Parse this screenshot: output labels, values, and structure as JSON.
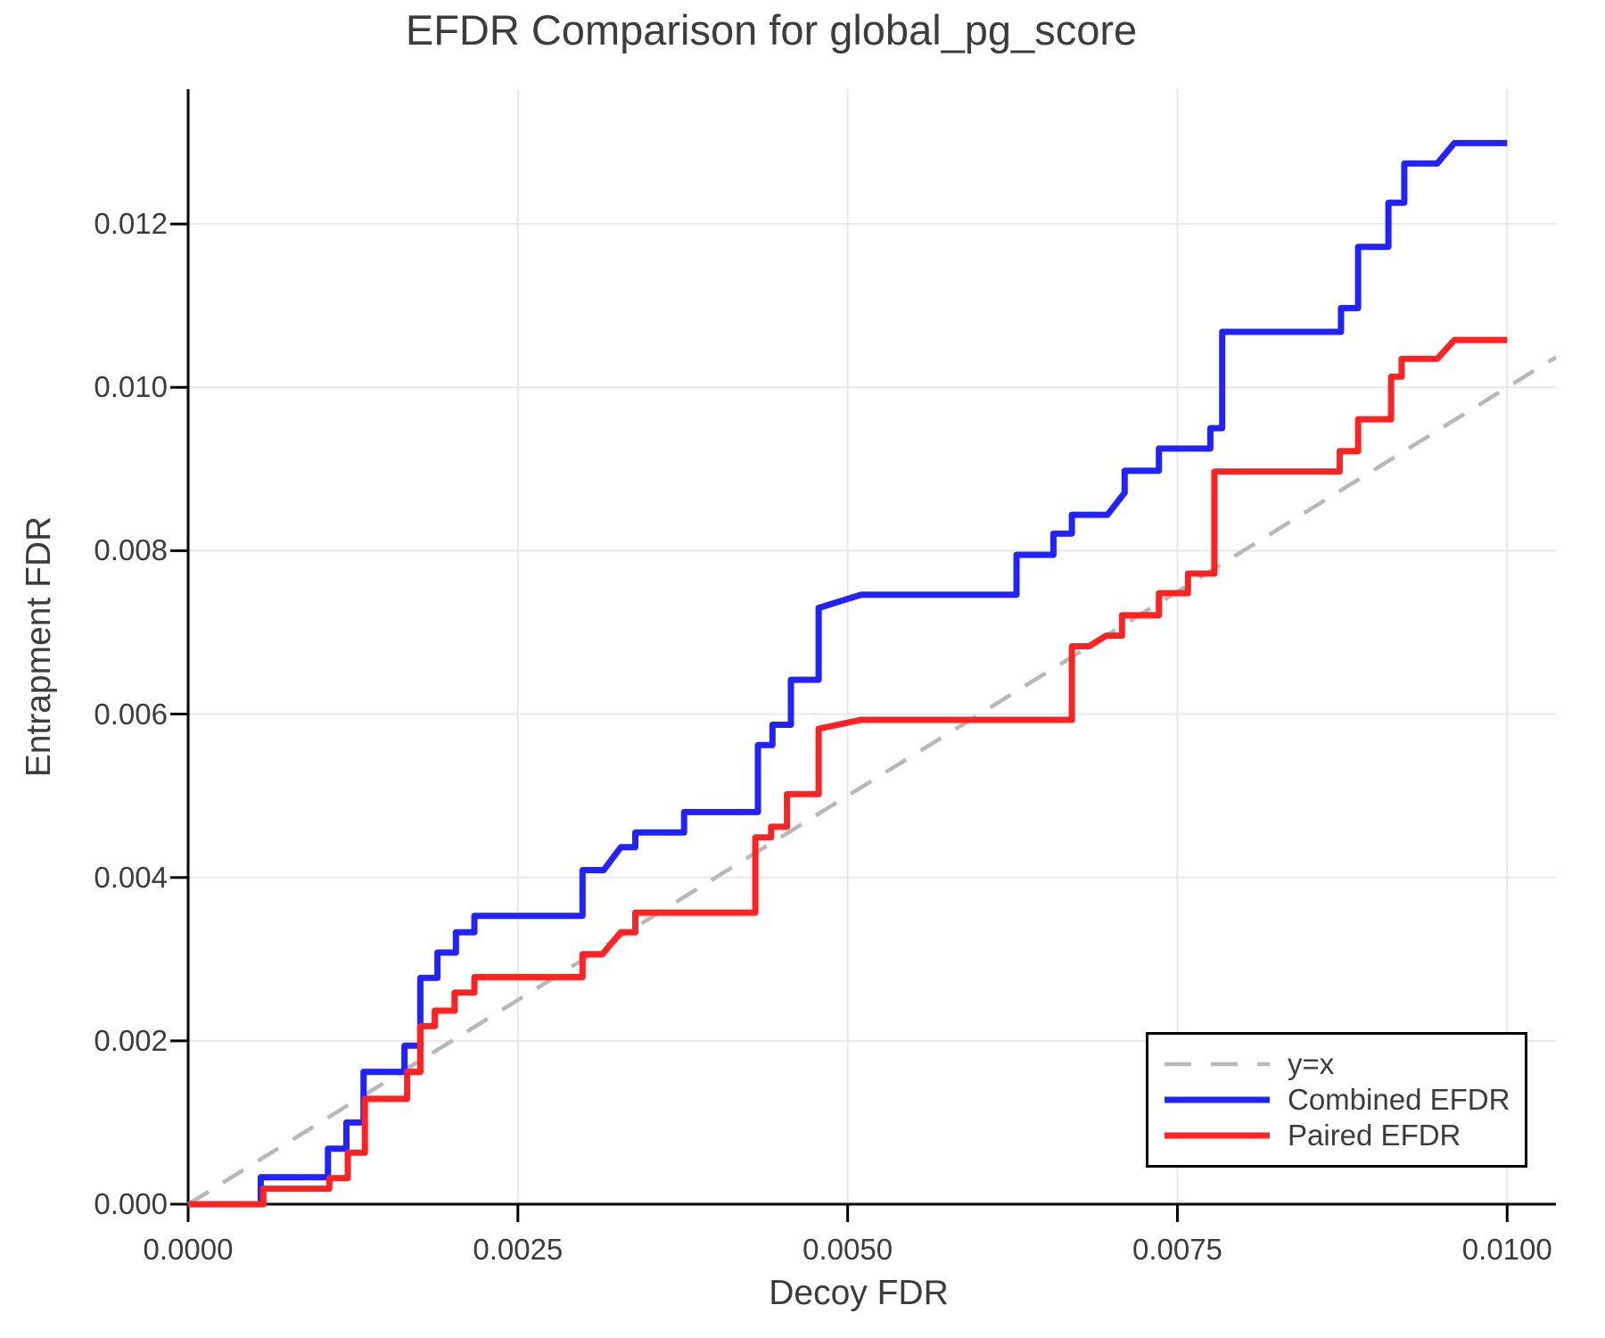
{
  "title": "EFDR Comparison for global_pg_score",
  "axes": {
    "xlabel": "Decoy FDR",
    "ylabel": "Entrapment FDR"
  },
  "legend": {
    "position": "bottom-right",
    "entries": [
      {
        "label": "y=x"
      },
      {
        "label": "Combined EFDR"
      },
      {
        "label": "Paired EFDR"
      }
    ]
  },
  "colors": {
    "combined": "#2222ff",
    "paired": "#ff2222",
    "identity": "#b8b8b8",
    "gridline": "#e8e8e8",
    "spine": "#000000",
    "text": "#3c3c3c",
    "background": "#ffffff"
  },
  "chart_data": {
    "type": "line",
    "title": "EFDR Comparison for global_pg_score",
    "xlabel": "Decoy FDR",
    "ylabel": "Entrapment FDR",
    "xlim": [
      0,
      0.01037
    ],
    "ylim": [
      0,
      0.01365
    ],
    "grid": true,
    "legend_position": "bottom-right",
    "xticks": {
      "values": [
        0.0,
        0.0025,
        0.005,
        0.0075,
        0.01
      ],
      "labels": [
        "0.0000",
        "0.0025",
        "0.0050",
        "0.0075",
        "0.0100"
      ]
    },
    "yticks": {
      "values": [
        0.0,
        0.002,
        0.004,
        0.006,
        0.008,
        0.01,
        0.012
      ],
      "labels": [
        "0.000",
        "0.002",
        "0.004",
        "0.006",
        "0.008",
        "0.010",
        "0.012"
      ]
    },
    "series": [
      {
        "name": "y=x",
        "style": "dashed",
        "color": "#b8b8b8",
        "width": 4.5,
        "points": [
          [
            0,
            0
          ],
          [
            0.01037,
            0.01037
          ]
        ]
      },
      {
        "name": "Combined EFDR",
        "style": "solid",
        "color": "#2222ff",
        "width": 7,
        "points": [
          [
            0,
            0
          ],
          [
            0.00055,
            0
          ],
          [
            0.00055,
            0.00033
          ],
          [
            0.00106,
            0.00033
          ],
          [
            0.00106,
            0.00068
          ],
          [
            0.0012,
            0.00068
          ],
          [
            0.0012,
            0.001
          ],
          [
            0.00133,
            0.001
          ],
          [
            0.00133,
            0.00162
          ],
          [
            0.00164,
            0.00162
          ],
          [
            0.00164,
            0.00194
          ],
          [
            0.00176,
            0.00194
          ],
          [
            0.00176,
            0.00277
          ],
          [
            0.00189,
            0.00277
          ],
          [
            0.00189,
            0.00308
          ],
          [
            0.00203,
            0.00308
          ],
          [
            0.00203,
            0.00333
          ],
          [
            0.00217,
            0.00333
          ],
          [
            0.00217,
            0.00353
          ],
          [
            0.00299,
            0.00353
          ],
          [
            0.00299,
            0.00409
          ],
          [
            0.00315,
            0.00409
          ],
          [
            0.00328,
            0.00437
          ],
          [
            0.00339,
            0.00437
          ],
          [
            0.00339,
            0.00455
          ],
          [
            0.00376,
            0.00455
          ],
          [
            0.00376,
            0.0048
          ],
          [
            0.00432,
            0.0048
          ],
          [
            0.00432,
            0.00562
          ],
          [
            0.00443,
            0.00562
          ],
          [
            0.00443,
            0.00587
          ],
          [
            0.00457,
            0.00587
          ],
          [
            0.00457,
            0.00642
          ],
          [
            0.00478,
            0.00642
          ],
          [
            0.00478,
            0.0073
          ],
          [
            0.0051,
            0.00746
          ],
          [
            0.00628,
            0.00746
          ],
          [
            0.00628,
            0.00795
          ],
          [
            0.00656,
            0.00795
          ],
          [
            0.00656,
            0.00821
          ],
          [
            0.0067,
            0.00821
          ],
          [
            0.0067,
            0.00844
          ],
          [
            0.00697,
            0.00844
          ],
          [
            0.0071,
            0.00871
          ],
          [
            0.0071,
            0.00898
          ],
          [
            0.00736,
            0.00898
          ],
          [
            0.00736,
            0.00925
          ],
          [
            0.00775,
            0.00925
          ],
          [
            0.00775,
            0.0095
          ],
          [
            0.00784,
            0.0095
          ],
          [
            0.00784,
            0.01068
          ],
          [
            0.00874,
            0.01068
          ],
          [
            0.00874,
            0.01097
          ],
          [
            0.00887,
            0.01097
          ],
          [
            0.00887,
            0.01172
          ],
          [
            0.0091,
            0.01172
          ],
          [
            0.0091,
            0.01226
          ],
          [
            0.00922,
            0.01226
          ],
          [
            0.00922,
            0.01274
          ],
          [
            0.00947,
            0.01274
          ],
          [
            0.0096,
            0.01299
          ],
          [
            0.01,
            0.01299
          ]
        ]
      },
      {
        "name": "Paired EFDR",
        "style": "solid",
        "color": "#ff2222",
        "width": 7,
        "points": [
          [
            0,
            0
          ],
          [
            0.00057,
            0
          ],
          [
            0.00057,
            0.00019
          ],
          [
            0.00107,
            0.00019
          ],
          [
            0.00107,
            0.00032
          ],
          [
            0.00121,
            0.00032
          ],
          [
            0.00121,
            0.00063
          ],
          [
            0.00134,
            0.00063
          ],
          [
            0.00134,
            0.00129
          ],
          [
            0.00166,
            0.00129
          ],
          [
            0.00166,
            0.00162
          ],
          [
            0.00176,
            0.00162
          ],
          [
            0.00176,
            0.00218
          ],
          [
            0.00187,
            0.00218
          ],
          [
            0.00187,
            0.00237
          ],
          [
            0.00202,
            0.00237
          ],
          [
            0.00202,
            0.00259
          ],
          [
            0.00217,
            0.00259
          ],
          [
            0.00217,
            0.00278
          ],
          [
            0.00299,
            0.00278
          ],
          [
            0.00299,
            0.00306
          ],
          [
            0.00314,
            0.00306
          ],
          [
            0.00328,
            0.00333
          ],
          [
            0.00339,
            0.00333
          ],
          [
            0.00339,
            0.00357
          ],
          [
            0.0043,
            0.00357
          ],
          [
            0.0043,
            0.00449
          ],
          [
            0.00442,
            0.00449
          ],
          [
            0.00442,
            0.00462
          ],
          [
            0.00454,
            0.00462
          ],
          [
            0.00454,
            0.00502
          ],
          [
            0.00478,
            0.00502
          ],
          [
            0.00478,
            0.00582
          ],
          [
            0.0051,
            0.00593
          ],
          [
            0.0067,
            0.00593
          ],
          [
            0.0067,
            0.00683
          ],
          [
            0.00683,
            0.00683
          ],
          [
            0.00696,
            0.00696
          ],
          [
            0.00708,
            0.00696
          ],
          [
            0.00708,
            0.00721
          ],
          [
            0.00736,
            0.00721
          ],
          [
            0.00736,
            0.00748
          ],
          [
            0.00758,
            0.00748
          ],
          [
            0.00758,
            0.00772
          ],
          [
            0.00778,
            0.00772
          ],
          [
            0.00778,
            0.00897
          ],
          [
            0.00873,
            0.00897
          ],
          [
            0.00873,
            0.00922
          ],
          [
            0.00887,
            0.00922
          ],
          [
            0.00887,
            0.00961
          ],
          [
            0.00912,
            0.00961
          ],
          [
            0.00912,
            0.01013
          ],
          [
            0.0092,
            0.01013
          ],
          [
            0.0092,
            0.01035
          ],
          [
            0.00947,
            0.01035
          ],
          [
            0.0096,
            0.01058
          ],
          [
            0.01,
            0.01058
          ]
        ]
      }
    ]
  }
}
